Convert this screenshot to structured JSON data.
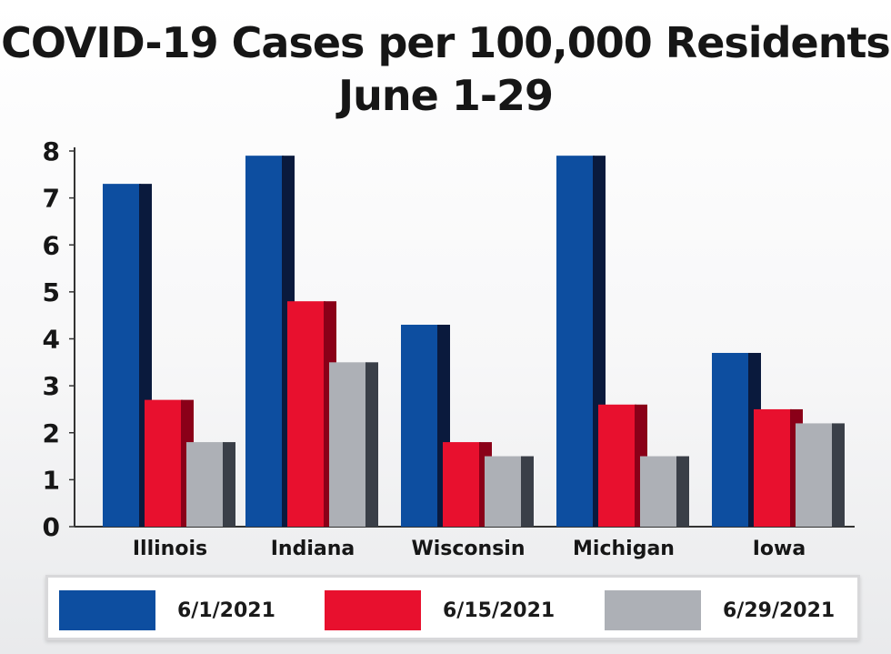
{
  "chart_data": {
    "type": "bar",
    "title": "COVID-19 Cases per 100,000 Residents",
    "subtitle": "June 1-29",
    "categories": [
      "Illinois",
      "Indiana",
      "Wisconsin",
      "Michigan",
      "Iowa"
    ],
    "series": [
      {
        "name": "6/1/2021",
        "values": [
          7.3,
          7.9,
          4.3,
          7.9,
          3.7
        ],
        "color": "#0d4ea0",
        "shade": "#0a1a3d"
      },
      {
        "name": "6/15/2021",
        "values": [
          2.7,
          4.8,
          1.8,
          2.6,
          2.5
        ],
        "color": "#e8102e",
        "shade": "#8a0018"
      },
      {
        "name": "6/29/2021",
        "values": [
          1.8,
          3.5,
          1.5,
          1.5,
          2.2
        ],
        "color": "#adb0b6",
        "shade": "#3a3f48"
      }
    ],
    "y_ticks": [
      "0",
      "1",
      "2",
      "3",
      "4",
      "5",
      "6",
      "7",
      "8"
    ],
    "ylim": [
      0,
      8
    ],
    "legend_position": "bottom",
    "grid": false
  }
}
